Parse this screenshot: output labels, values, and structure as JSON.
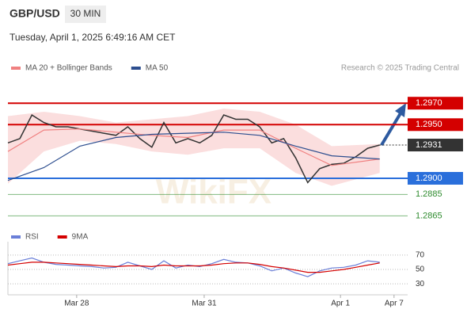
{
  "header": {
    "symbol": "GBP/USD",
    "timeframe": "30 MIN",
    "datetime": "Tuesday, April 1, 2025 6:49:16 AM CET",
    "credit": "Research © 2025 Trading Central",
    "watermark": "WikiFX"
  },
  "chart_data": [
    {
      "type": "line",
      "price": {
        "color": "#333333",
        "x": [
          0,
          3,
          6,
          9,
          12,
          15,
          18,
          21,
          24,
          27,
          30,
          33,
          36,
          39,
          42,
          45,
          48,
          51,
          54,
          57,
          60,
          63,
          66,
          69,
          72,
          75,
          78,
          81,
          84,
          87,
          90,
          93
        ],
        "values": [
          1.2933,
          1.2937,
          1.2959,
          1.2952,
          1.2948,
          1.2948,
          1.2946,
          1.2944,
          1.2942,
          1.294,
          1.2948,
          1.2937,
          1.2929,
          1.2952,
          1.2933,
          1.2937,
          1.2933,
          1.294,
          1.2959,
          1.2955,
          1.2955,
          1.2948,
          1.2933,
          1.2937,
          1.2919,
          1.2896,
          1.2909,
          1.2913,
          1.2914,
          1.292,
          1.2928,
          1.2931
        ]
      },
      "series": [
        {
          "name": "MA 20 + Bollinger Bands",
          "color": "#f08080",
          "band_color": "#fbdede",
          "x": [
            0,
            9,
            18,
            27,
            36,
            45,
            54,
            63,
            72,
            81,
            93
          ],
          "values": [
            1.2925,
            1.2945,
            1.2946,
            1.2943,
            1.294,
            1.2938,
            1.2945,
            1.2945,
            1.2928,
            1.2912,
            1.2918
          ],
          "upper": [
            1.2958,
            1.2962,
            1.2958,
            1.2952,
            1.2955,
            1.2958,
            1.2965,
            1.2962,
            1.295,
            1.293,
            1.2932
          ],
          "lower": [
            1.2895,
            1.2925,
            1.2935,
            1.2932,
            1.2925,
            1.2922,
            1.2928,
            1.2928,
            1.2905,
            1.2893,
            1.2905
          ]
        },
        {
          "name": "MA 50",
          "color": "#2d4e8f",
          "x": [
            0,
            9,
            18,
            27,
            36,
            45,
            54,
            63,
            72,
            81,
            93
          ],
          "values": [
            1.2898,
            1.291,
            1.293,
            1.2938,
            1.2941,
            1.2942,
            1.2943,
            1.294,
            1.293,
            1.2921,
            1.2918
          ]
        }
      ],
      "levels": [
        {
          "value": 1.297,
          "label": "1.2970",
          "color": "#d40000",
          "style": "solid",
          "boxed": true
        },
        {
          "value": 1.295,
          "label": "1.2950",
          "color": "#d40000",
          "style": "solid",
          "boxed": true
        },
        {
          "value": 1.2931,
          "label": "1.2931",
          "color": "#333333",
          "style": "dotted",
          "boxed": true
        },
        {
          "value": 1.29,
          "label": "1.2900",
          "color": "#2a6fdb",
          "style": "solid",
          "boxed": true
        },
        {
          "value": 1.2885,
          "label": "1.2885",
          "color": "#2e8b2e",
          "style": "solid",
          "boxed": false
        },
        {
          "value": 1.2865,
          "label": "1.2865",
          "color": "#2e8b2e",
          "style": "solid",
          "boxed": false
        }
      ],
      "xlim": [
        0,
        100
      ],
      "ylim": [
        1.2852,
        1.2996
      ]
    },
    {
      "type": "line",
      "series": [
        {
          "name": "RSI",
          "color": "#6a7fd8",
          "x": [
            0,
            3,
            6,
            9,
            12,
            15,
            18,
            21,
            24,
            27,
            30,
            33,
            36,
            39,
            42,
            45,
            48,
            51,
            54,
            57,
            60,
            63,
            66,
            69,
            72,
            75,
            78,
            81,
            84,
            87,
            90,
            93
          ],
          "values": [
            58,
            62,
            66,
            60,
            57,
            56,
            55,
            54,
            52,
            53,
            60,
            55,
            50,
            62,
            52,
            56,
            54,
            58,
            64,
            60,
            59,
            55,
            48,
            52,
            45,
            40,
            48,
            52,
            53,
            56,
            62,
            60
          ]
        },
        {
          "name": "9MA",
          "color": "#d40000",
          "x": [
            0,
            3,
            6,
            9,
            12,
            15,
            18,
            21,
            24,
            27,
            30,
            33,
            36,
            39,
            42,
            45,
            48,
            51,
            54,
            57,
            60,
            63,
            66,
            69,
            72,
            75,
            78,
            81,
            84,
            87,
            90,
            93
          ],
          "values": [
            56,
            58,
            60,
            60,
            59,
            58,
            57,
            56,
            55,
            54,
            55,
            55,
            54,
            56,
            55,
            55,
            55,
            56,
            58,
            59,
            59,
            57,
            54,
            52,
            49,
            46,
            46,
            48,
            50,
            53,
            56,
            59
          ]
        }
      ],
      "xlim": [
        0,
        100
      ],
      "xticks": [
        {
          "value": 17.2,
          "label": "Mar 28"
        },
        {
          "value": 49.1,
          "label": "Mar 31"
        },
        {
          "value": 83.2,
          "label": "Apr 1"
        },
        {
          "value": 96.6,
          "label": "Apr 7"
        }
      ],
      "ylim": [
        17,
        83
      ],
      "yticks": [
        70,
        50,
        30
      ],
      "grid": true
    }
  ]
}
